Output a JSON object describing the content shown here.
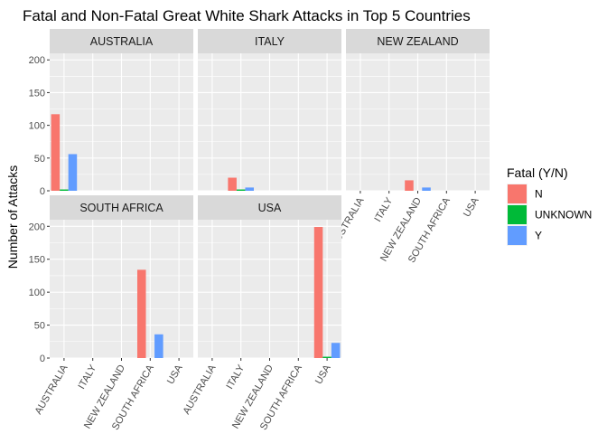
{
  "chart_data": {
    "type": "bar",
    "title": "Fatal and Non-Fatal Great White Shark Attacks in Top 5 Countries",
    "xlabel": "",
    "ylabel": "Number of Attacks",
    "ylim": [
      0,
      210
    ],
    "y_ticks": [
      0,
      50,
      100,
      150,
      200
    ],
    "categories": [
      "AUSTRALIA",
      "ITALY",
      "NEW ZEALAND",
      "SOUTH AFRICA",
      "USA"
    ],
    "legend": {
      "title": "Fatal (Y/N)",
      "placement": "right",
      "entries": [
        "N",
        "UNKNOWN",
        "Y"
      ]
    },
    "colors": {
      "N": "#F8766D",
      "UNKNOWN": "#00BA38",
      "Y": "#619CFF"
    },
    "grid": true,
    "facets": [
      {
        "label": "AUSTRALIA",
        "bars": [
          {
            "category": "AUSTRALIA",
            "values": {
              "N": 117,
              "UNKNOWN": 2,
              "Y": 56
            }
          }
        ]
      },
      {
        "label": "ITALY",
        "bars": [
          {
            "category": "ITALY",
            "values": {
              "N": 20,
              "UNKNOWN": 2,
              "Y": 5
            }
          }
        ]
      },
      {
        "label": "NEW ZEALAND",
        "bars": [
          {
            "category": "NEW ZEALAND",
            "values": {
              "N": 16,
              "UNKNOWN": 0,
              "Y": 5
            }
          }
        ]
      },
      {
        "label": "SOUTH AFRICA",
        "bars": [
          {
            "category": "SOUTH AFRICA",
            "values": {
              "N": 134,
              "UNKNOWN": 0,
              "Y": 36
            }
          }
        ]
      },
      {
        "label": "USA",
        "bars": [
          {
            "category": "USA",
            "values": {
              "N": 199,
              "UNKNOWN": 2,
              "Y": 23
            }
          }
        ]
      }
    ]
  }
}
